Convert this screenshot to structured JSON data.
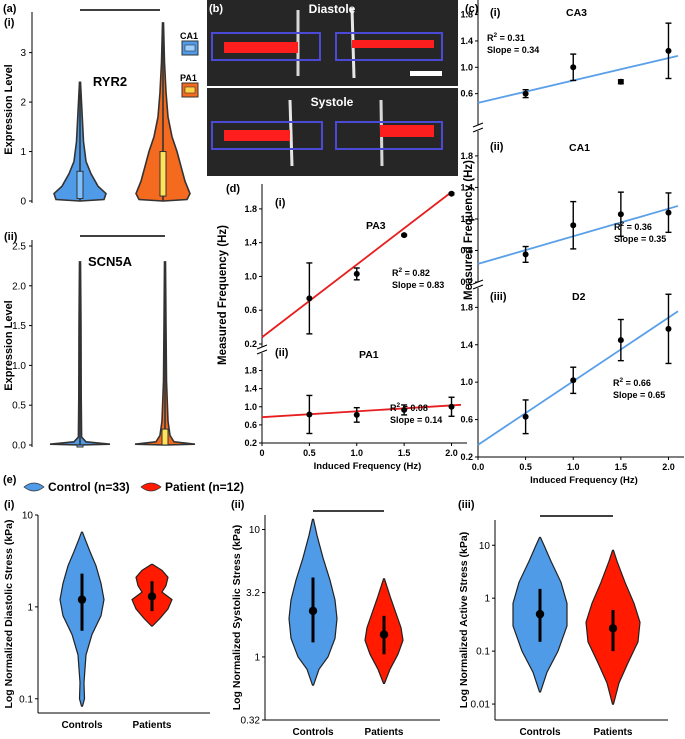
{
  "colors": {
    "control": "#4f9be8",
    "patient": "#ff1a00",
    "ca1_fit": "#5aa0e8",
    "pa_fit": "#e81e1e",
    "orange_violin": "#f46a1e",
    "dark": "#333333",
    "electrode": "#4a4ad6",
    "tissue": "#ff1e1e",
    "micro_bg": "#2a2a2a"
  },
  "panel_labels": {
    "a": "(a)",
    "a_i": "(i)",
    "a_ii": "(ii)",
    "b": "(b)",
    "c": "(c)",
    "c_i": "(i)",
    "c_ii": "(ii)",
    "c_iii": "(iii)",
    "d": "(d)",
    "d_i": "(i)",
    "d_ii": "(ii)",
    "e": "(e)",
    "e_i": "(i)",
    "e_ii": "(ii)",
    "e_iii": "(iii)"
  },
  "legend": {
    "control": "Control (n=33)",
    "patient": "Patient (n=12)"
  },
  "microscopy": {
    "top_label": "Diastole",
    "bottom_label": "Systole"
  },
  "chart_data": [
    {
      "id": "a_i",
      "type": "violin",
      "title": "RYR2",
      "ylabel": "Expression Level",
      "ylim": [
        0,
        3.7
      ],
      "yticks": [
        0,
        1,
        2,
        3
      ],
      "groups": [
        "CA1",
        "PA1"
      ],
      "legend": [
        "CA1",
        "PA1"
      ],
      "summary": [
        {
          "group": "CA1",
          "max": 2.4,
          "q1": 0.05,
          "median": 0.2,
          "q3": 0.6
        },
        {
          "group": "PA1",
          "max": 3.6,
          "q1": 0.1,
          "median": 0.5,
          "q3": 1.0
        }
      ],
      "significance_bar": true
    },
    {
      "id": "a_ii",
      "type": "violin",
      "title": "SCN5A",
      "ylabel": "Expression Level",
      "ylim": [
        0,
        2.5
      ],
      "yticks": [
        0,
        0.5,
        1,
        1.5,
        2,
        2.5
      ],
      "tick_labels": [
        "0.0",
        "0.5",
        "1.0",
        "1.5",
        "2.0",
        "2.5"
      ],
      "groups": [
        "CA1",
        "PA1"
      ],
      "summary": [
        {
          "group": "CA1",
          "max": 2.3,
          "q1": 0,
          "median": 0,
          "q3": 0
        },
        {
          "group": "PA1",
          "max": 2.3,
          "q1": 0,
          "median": 0.05,
          "q3": 0.2
        }
      ],
      "significance_bar": true
    },
    {
      "id": "c",
      "type": "scatter",
      "ylabel": "Measured Frequency (Hz)",
      "xlabel": "Induced Frequency (Hz)",
      "xlim": [
        0,
        2.1
      ],
      "xticks": [
        0,
        0.5,
        1,
        1.5,
        2
      ],
      "x_tick_labels": [
        "0.0",
        "0.5",
        "1.0",
        "1.5",
        "2.0"
      ],
      "subplots": [
        {
          "label": "(i)",
          "name": "CA3",
          "r2": "0.31",
          "slope": "0.34",
          "ylim": [
            0.2,
            1.9
          ],
          "yticks": [
            0.6,
            1.0,
            1.4,
            1.8
          ],
          "ytick_labels": [
            "0.6",
            "1.0",
            "1.4",
            "1.8"
          ],
          "x": [
            0.5,
            1.0,
            1.5,
            2.0
          ],
          "y": [
            0.6,
            1.0,
            0.78,
            1.25
          ],
          "err": [
            0.06,
            0.2,
            0.03,
            0.42
          ],
          "fit": [
            0.46,
            0.34
          ]
        },
        {
          "label": "(ii)",
          "name": "CA1",
          "r2": "0.36",
          "slope": "0.35",
          "ylim": [
            0.2,
            1.9
          ],
          "yticks": [
            0.2,
            0.6,
            1.0,
            1.4,
            1.8
          ],
          "ytick_labels": [
            "0.2",
            "0.6",
            "1.0",
            "1.4",
            "1.8"
          ],
          "x": [
            0.5,
            1.0,
            1.5,
            2.0
          ],
          "y": [
            0.55,
            0.92,
            1.06,
            1.08
          ],
          "err": [
            0.1,
            0.3,
            0.28,
            0.25
          ],
          "fit": [
            0.43,
            0.35
          ]
        },
        {
          "label": "(iii)",
          "name": "D2",
          "r2": "0.66",
          "slope": "0.65",
          "ylim": [
            0.2,
            1.9
          ],
          "yticks": [
            0.2,
            0.6,
            1.0,
            1.4,
            1.8
          ],
          "ytick_labels": [
            "0.2",
            "0.6",
            "1.0",
            "1.4",
            "1.8"
          ],
          "x": [
            0.5,
            1.0,
            1.5,
            2.0
          ],
          "y": [
            0.63,
            1.02,
            1.45,
            1.57
          ],
          "err": [
            0.18,
            0.14,
            0.22,
            0.37
          ],
          "fit": [
            0.33,
            0.68
          ]
        }
      ]
    },
    {
      "id": "d",
      "type": "scatter",
      "ylabel": "Measured Frequency (Hz)",
      "xlabel": "Induced Frequency (Hz)",
      "xlim": [
        0,
        2.1
      ],
      "xticks": [
        0,
        0.5,
        1,
        1.5,
        2
      ],
      "x_tick_labels": [
        "0",
        "0.5",
        "1.0",
        "1.5",
        "2.0"
      ],
      "subplots": [
        {
          "label": "(i)",
          "name": "PA3",
          "r2": "0.82",
          "slope": "0.83",
          "ylim": [
            0.2,
            2.0
          ],
          "yticks": [
            0.2,
            0.6,
            1.0,
            1.4,
            1.8
          ],
          "ytick_labels": [
            "0.2",
            "0.6",
            "1.0",
            "1.4",
            "1.8"
          ],
          "x": [
            0.5,
            1.0,
            1.5,
            2.0
          ],
          "y": [
            0.74,
            1.03,
            1.49,
            1.98
          ],
          "err": [
            0.42,
            0.07,
            0.01,
            0.01
          ],
          "fit": [
            0.28,
            0.86
          ]
        },
        {
          "label": "(ii)",
          "name": "PA1",
          "r2": "0.08",
          "slope": "0.14",
          "ylim": [
            0.2,
            1.9
          ],
          "yticks": [
            0.2,
            0.6,
            1.0,
            1.4,
            1.8
          ],
          "ytick_labels": [
            "0.2",
            "0.6",
            "1.0",
            "1.4",
            "1.8"
          ],
          "x": [
            0.5,
            1.0,
            1.5,
            2.0
          ],
          "y": [
            0.83,
            0.82,
            0.93,
            1.0
          ],
          "err": [
            0.42,
            0.16,
            0.11,
            0.21
          ],
          "fit": [
            0.77,
            0.13
          ]
        }
      ]
    },
    {
      "id": "e_i",
      "type": "violin",
      "scale": "log",
      "ylabel": "Log Normalized Diastolic Stress (kPa)",
      "ylim": [
        0.07,
        10
      ],
      "yticks": [
        0.1,
        1,
        10
      ],
      "ytick_labels": [
        "0.1",
        "1",
        "10"
      ],
      "categories": [
        "Controls",
        "Patients"
      ],
      "points": [
        {
          "group": "Controls",
          "mean": 1.2,
          "lo": 0.55,
          "hi": 2.3
        },
        {
          "group": "Patients",
          "mean": 1.3,
          "lo": 0.9,
          "hi": 1.9
        }
      ],
      "significance_bar": false
    },
    {
      "id": "e_ii",
      "type": "violin",
      "scale": "log",
      "ylabel": "Log Normalized Systolic Stress (kPa)",
      "ylim": [
        0.32,
        13
      ],
      "yticks": [
        0.32,
        1,
        3.2,
        10
      ],
      "ytick_labels": [
        "0.32",
        "1",
        "3.2",
        "10"
      ],
      "categories": [
        "Controls",
        "Patients"
      ],
      "points": [
        {
          "group": "Controls",
          "mean": 2.3,
          "lo": 1.3,
          "hi": 4.2
        },
        {
          "group": "Patients",
          "mean": 1.5,
          "lo": 1.05,
          "hi": 2.1
        }
      ],
      "significance_bar": true
    },
    {
      "id": "e_iii",
      "type": "violin",
      "scale": "log",
      "ylabel": "Log Normalized Active Stress (kPa)",
      "ylim": [
        0.005,
        30
      ],
      "yticks": [
        0.01,
        0.1,
        1,
        10
      ],
      "ytick_labels": [
        "0.01",
        "0.1",
        "1",
        "10"
      ],
      "categories": [
        "Controls",
        "Patients"
      ],
      "points": [
        {
          "group": "Controls",
          "mean": 0.5,
          "lo": 0.15,
          "hi": 1.5
        },
        {
          "group": "Patients",
          "mean": 0.27,
          "lo": 0.1,
          "hi": 0.6
        }
      ],
      "significance_bar": true
    }
  ]
}
